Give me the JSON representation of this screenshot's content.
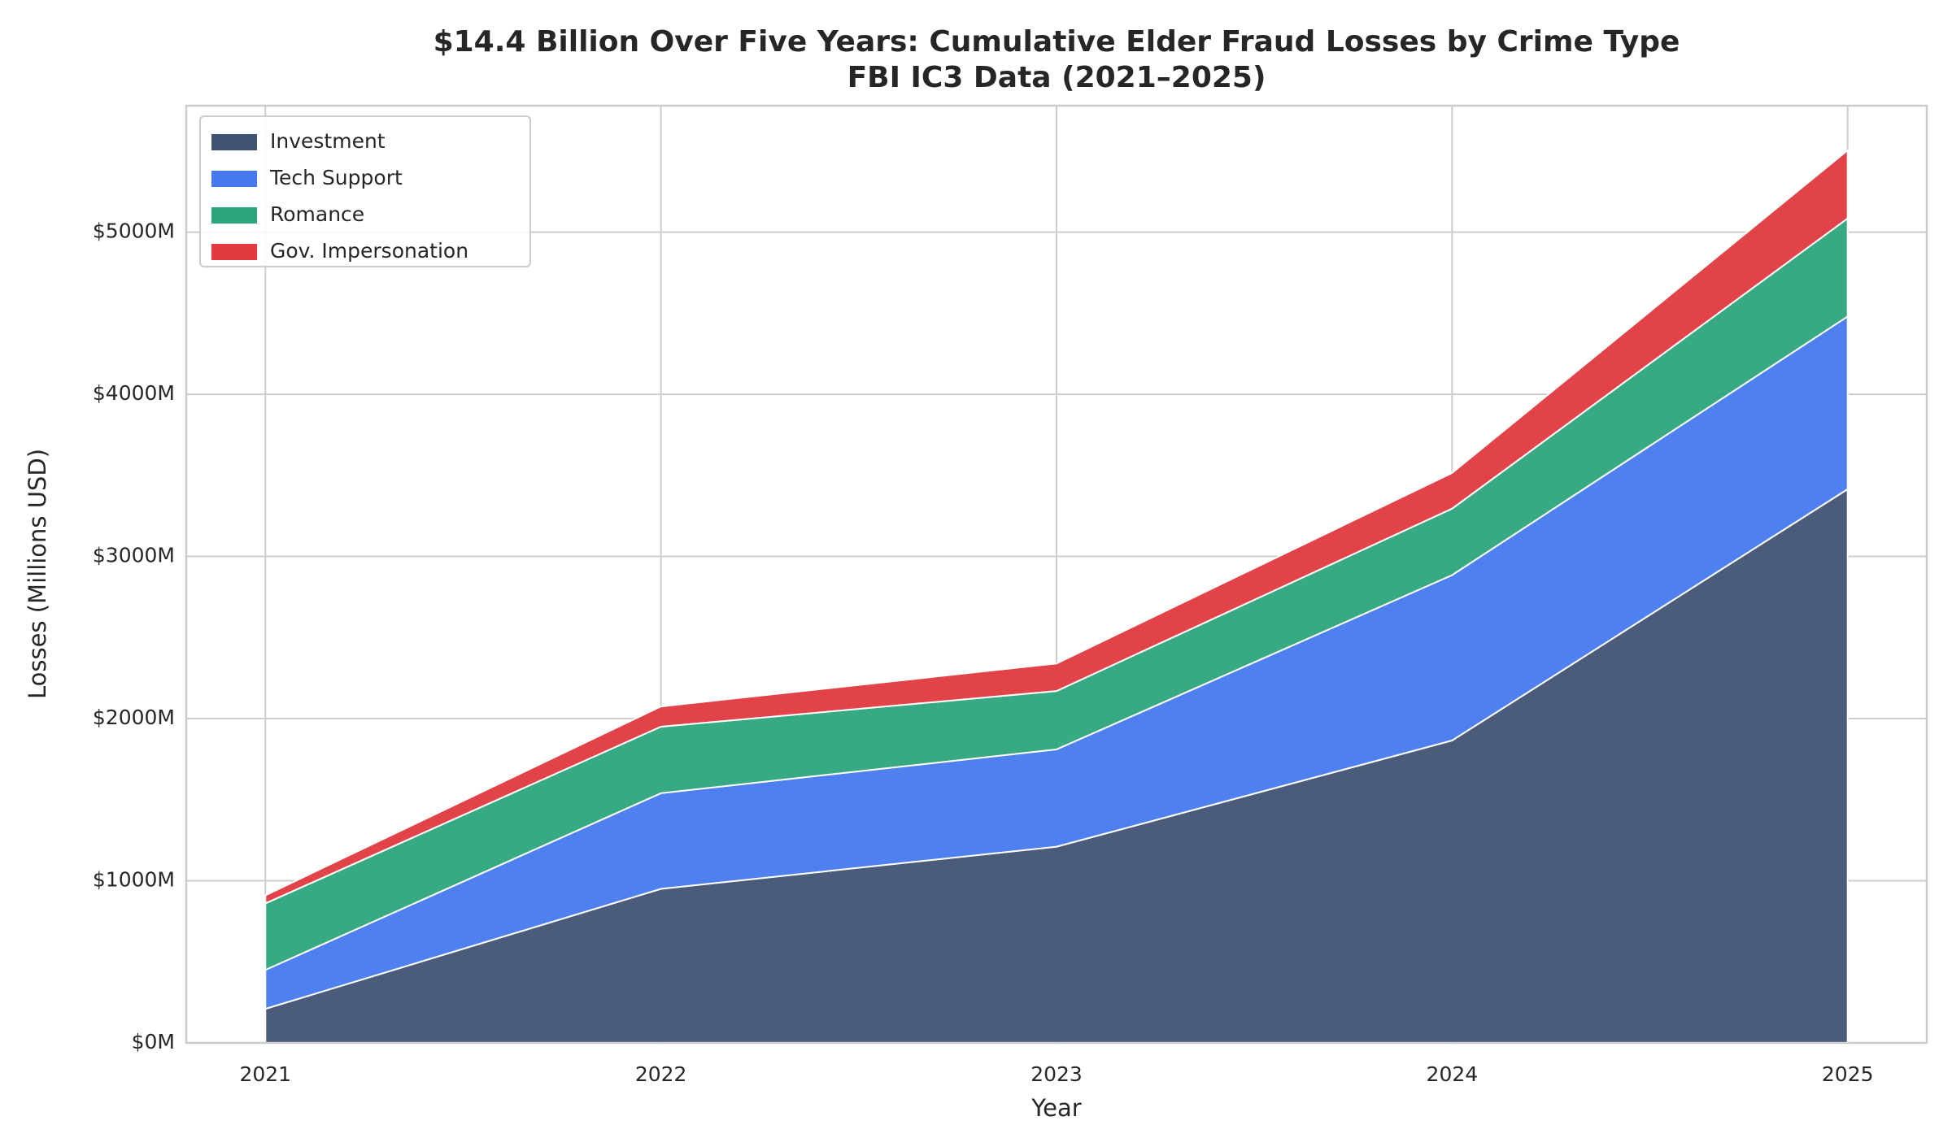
{
  "chart_data": {
    "type": "stacked_area",
    "title": "$14.4 Billion Over Five Years: Cumulative Elder Fraud Losses by Crime Type",
    "subtitle": "FBI IC3 Data (2021–2025)",
    "x_label": "Year",
    "y_label": "Losses (Millions USD)",
    "x": [
      2021,
      2022,
      2023,
      2024,
      2025
    ],
    "series": [
      {
        "name": "Investment",
        "color": "#415373",
        "values": [
          210,
          950,
          1210,
          1865,
          3415
        ]
      },
      {
        "name": "Tech Support",
        "color": "#4679ee",
        "values": [
          240,
          590,
          600,
          1020,
          1065
        ]
      },
      {
        "name": "Romance",
        "color": "#2ca47c",
        "values": [
          410,
          410,
          360,
          410,
          605
        ]
      },
      {
        "name": "Gov. Impersonation",
        "color": "#e0393f",
        "values": [
          50,
          125,
          170,
          220,
          420
        ]
      }
    ],
    "xlim": [
      2020.8,
      2025.2
    ],
    "xticks": [
      2021,
      2022,
      2023,
      2024,
      2025
    ],
    "ylim": [
      0,
      5780
    ],
    "yticks": [
      {
        "value": 0,
        "label": "$0M"
      },
      {
        "value": 1000,
        "label": "$1000M"
      },
      {
        "value": 2000,
        "label": "$2000M"
      },
      {
        "value": 3000,
        "label": "$3000M"
      },
      {
        "value": 4000,
        "label": "$4000M"
      },
      {
        "value": 5000,
        "label": "$5000M"
      }
    ],
    "grid": true,
    "legend": "upper left"
  }
}
